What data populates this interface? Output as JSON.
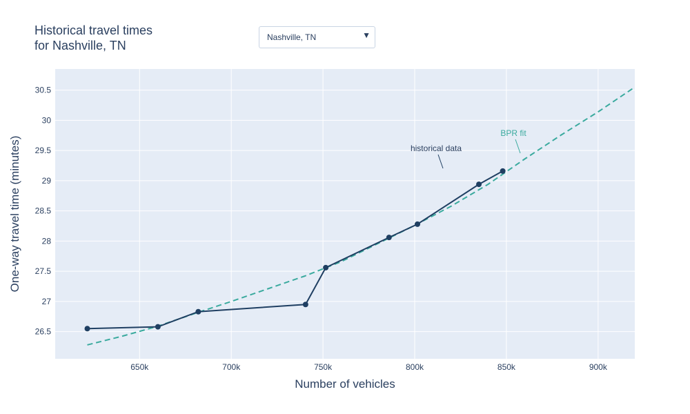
{
  "title_lines": [
    "Historical travel times",
    "for Nashville, TN"
  ],
  "dropdown": {
    "selected": "Nashville, TN",
    "arrow_icon": "triangle-down-icon"
  },
  "colors": {
    "plot_bg": "#e5ecf6",
    "grid": "#ffffff",
    "historical": "#1f3f62",
    "bpr": "#3aaa9e",
    "text": "#2a3f5f"
  },
  "chart_data": {
    "type": "line",
    "title": "Historical travel times for Nashville, TN",
    "xlabel": "Number of vehicles",
    "ylabel": "One-way travel time (minutes)",
    "xlim": [
      604000,
      920000
    ],
    "ylim": [
      26.05,
      30.85
    ],
    "xticks": [
      650000,
      700000,
      750000,
      800000,
      850000,
      900000
    ],
    "xtick_labels": [
      "650k",
      "700k",
      "750k",
      "800k",
      "850k",
      "900k"
    ],
    "yticks": [
      26.5,
      27,
      27.5,
      28,
      28.5,
      29,
      29.5,
      30,
      30.5
    ],
    "ytick_labels": [
      "26.5",
      "27",
      "27.5",
      "28",
      "28.5",
      "29",
      "29.5",
      "30",
      "30.5"
    ],
    "grid": true,
    "series": [
      {
        "name": "historical data",
        "style": "lines+markers",
        "x": [
          621500,
          660000,
          682000,
          740500,
          751500,
          786000,
          801500,
          835000,
          848000
        ],
        "y": [
          26.55,
          26.58,
          26.83,
          26.95,
          27.56,
          28.06,
          28.28,
          28.94,
          29.16
        ]
      },
      {
        "name": "BPR fit",
        "style": "dashed",
        "x": [
          621500,
          640000,
          660000,
          680000,
          700000,
          720000,
          740000,
          760000,
          780000,
          800000,
          820000,
          840000,
          860000,
          880000,
          900000,
          920000
        ],
        "y": [
          26.28,
          26.42,
          26.59,
          26.8,
          27.0,
          27.21,
          27.42,
          27.66,
          27.96,
          28.26,
          28.58,
          28.94,
          29.36,
          29.76,
          30.14,
          30.55
        ]
      }
    ],
    "annotations": [
      {
        "text": "historical data",
        "series": 0
      },
      {
        "text": "BPR fit",
        "series": 1
      }
    ]
  }
}
